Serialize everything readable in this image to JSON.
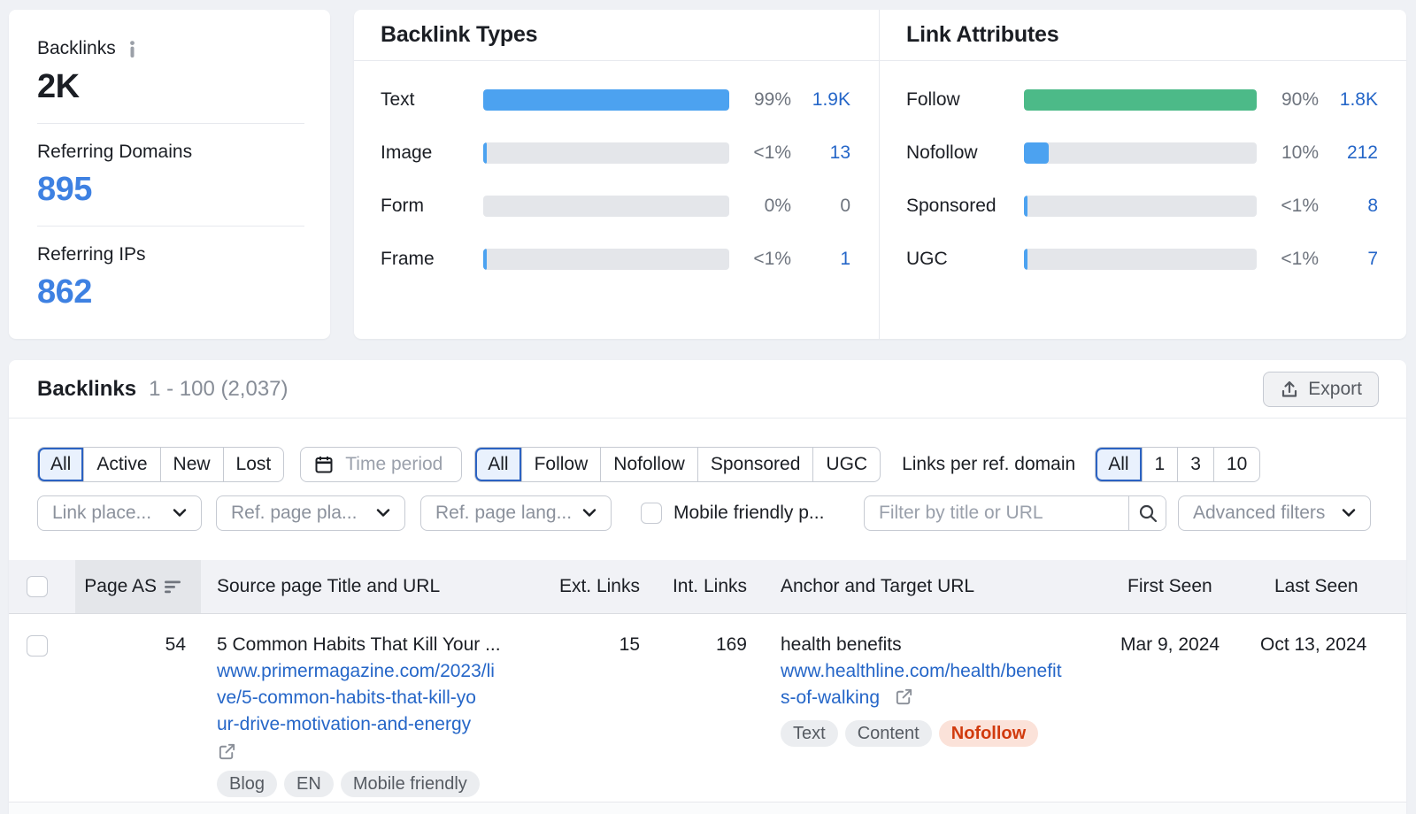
{
  "colors": {
    "page-bg": "#eff1f5",
    "card-bg": "#ffffff",
    "divider": "#e7e9ee",
    "dark": "#1b1e24",
    "gray-text": "#6e747e",
    "muted": "#9aa0ab",
    "muted-dd": "#8b919c",
    "link-blue": "#2566c8",
    "kpi-blue": "#3e81e2",
    "bar-blue": "#4ca2f0",
    "bar-green": "#4cba88",
    "track": "#e4e6ea",
    "btn-border": "#c6cad2",
    "sel-blue": "#2b62c2",
    "sel-bg": "#e9f1fd",
    "header-bg": "#f1f2f6",
    "header-col-bg": "#e4e6ea",
    "header-border": "#dadce1",
    "row-border": "#e6e8ec",
    "pill-bg": "#ebedf0",
    "pill-text": "#565b62",
    "pill-red-bg": "#fbe2d9",
    "pill-red-text": "#d13a0d",
    "export-bg": "#f1f2f4",
    "export-text": "#565a61",
    "info-gray": "#9ba0a8",
    "icon-dark": "#1c1f24",
    "icon-dark2": "#3a3e44",
    "ext-gray": "#8a8f98",
    "sort-gray": "#70757e",
    "range-gray": "#878d97",
    "strip": "#fafbfc"
  },
  "summary_card": {
    "title": "Backlinks",
    "value": "2K",
    "metrics": [
      {
        "label": "Referring Domains",
        "value": "895"
      },
      {
        "label": "Referring IPs",
        "value": "862"
      }
    ]
  },
  "backlink_types": {
    "title": "Backlink Types",
    "rows": [
      {
        "label": "Text",
        "percent": "99%",
        "count": "1.9K",
        "fill_pct": 100
      },
      {
        "label": "Image",
        "percent": "<1%",
        "count": "13",
        "fill_pct": 1.5
      },
      {
        "label": "Form",
        "percent": "0%",
        "count": "0",
        "fill_pct": 0
      },
      {
        "label": "Frame",
        "percent": "<1%",
        "count": "1",
        "fill_pct": 1.5
      }
    ]
  },
  "link_attributes": {
    "title": "Link Attributes",
    "rows": [
      {
        "label": "Follow",
        "percent": "90%",
        "count": "1.8K",
        "fill_pct": 100
      },
      {
        "label": "Nofollow",
        "percent": "10%",
        "count": "212",
        "fill_pct": 10.6
      },
      {
        "label": "Sponsored",
        "percent": "<1%",
        "count": "8",
        "fill_pct": 1.5
      },
      {
        "label": "UGC",
        "percent": "<1%",
        "count": "7",
        "fill_pct": 1.5
      }
    ]
  },
  "section": {
    "title": "Backlinks",
    "range": "1 - 100 (2,037)",
    "export_label": "Export"
  },
  "filters": {
    "status_segments": [
      "All",
      "Active",
      "New",
      "Lost"
    ],
    "status_selected": "All",
    "time_period_label": "Time period",
    "follow_segments": [
      "All",
      "Follow",
      "Nofollow",
      "Sponsored",
      "UGC"
    ],
    "follow_selected": "All",
    "links_per_domain_label": "Links per ref. domain",
    "links_per_domain_segments": [
      "All",
      "1",
      "3",
      "10"
    ],
    "links_per_domain_selected": "All",
    "dropdowns": [
      "Link place...",
      "Ref. page pla...",
      "Ref. page lang..."
    ],
    "mobile_friendly_label": "Mobile friendly p...",
    "search_placeholder": "Filter by title or URL",
    "advanced_filters_label": "Advanced filters"
  },
  "table": {
    "headers": {
      "page_as": "Page AS",
      "source": "Source page Title and URL",
      "ext": "Ext. Links",
      "int": "Int. Links",
      "anchor": "Anchor and Target URL",
      "first_seen": "First Seen",
      "last_seen": "Last Seen"
    },
    "rows": [
      {
        "page_as": "54",
        "title": "5 Common Habits That Kill Your ...",
        "url": "www.primermagazine.com/2023/live/5-common-habits-that-kill-your-drive-motivation-and-energy",
        "url_lines": [
          "www.primermagazine.com/2023/li",
          "ve/5-common-habits-that-kill-yo",
          "ur-drive-motivation-and-energy"
        ],
        "tags": [
          "Blog",
          "EN",
          "Mobile friendly"
        ],
        "ext_links": "15",
        "int_links": "169",
        "anchor": "health benefits",
        "target_url": "www.healthline.com/health/benefits-of-walking",
        "target_url_lines": [
          "www.healthline.com/health/benefit",
          "s-of-walking"
        ],
        "link_tags": [
          "Text",
          "Content",
          "Nofollow"
        ],
        "first_seen": "Mar 9, 2024",
        "last_seen": "Oct 13, 2024"
      }
    ]
  }
}
